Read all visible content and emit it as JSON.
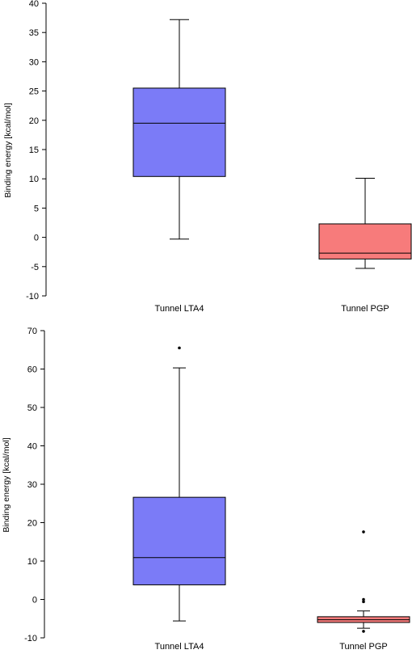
{
  "chart_data": [
    {
      "type": "box",
      "title": "",
      "xlabel": "",
      "ylabel": "Binding energy [kcal/mol]",
      "ylim": [
        -10,
        40
      ],
      "yticks": [
        "-10",
        "-5",
        "0",
        "5",
        "10",
        "15",
        "20",
        "25",
        "30",
        "35",
        "40"
      ],
      "grid": false,
      "categories": [
        "Tunnel LTA4",
        "Tunnel PGP"
      ],
      "boxes": [
        {
          "name": "Tunnel LTA4",
          "color": "#7b7bf7",
          "whisker_low": -0.3,
          "q1": 10.4,
          "median": 19.5,
          "q3": 25.5,
          "whisker_high": 37.2,
          "outliers": []
        },
        {
          "name": "Tunnel PGP",
          "color": "#f77b7b",
          "whisker_low": -5.3,
          "q1": -3.7,
          "median": -2.7,
          "q3": 2.3,
          "whisker_high": 10.1,
          "outliers": []
        }
      ]
    },
    {
      "type": "box",
      "title": "",
      "xlabel": "",
      "ylabel": "Binding energy [kcal/mol]",
      "ylim": [
        -10,
        70
      ],
      "yticks": [
        "-10",
        "0",
        "10",
        "20",
        "30",
        "40",
        "50",
        "60",
        "70"
      ],
      "grid": false,
      "categories": [
        "Tunnel LTA4",
        "Tunnel PGP"
      ],
      "boxes": [
        {
          "name": "Tunnel LTA4",
          "color": "#7b7bf7",
          "whisker_low": -5.6,
          "q1": 3.8,
          "median": 10.9,
          "q3": 26.6,
          "whisker_high": 60.3,
          "outliers": [
            65.5
          ]
        },
        {
          "name": "Tunnel PGP",
          "color": "#f77b7b",
          "whisker_low": -7.5,
          "q1": -6.0,
          "median": -5.3,
          "q3": -4.5,
          "whisker_high": -3.0,
          "outliers": [
            17.6,
            0.0,
            -0.6,
            -8.3
          ]
        }
      ]
    }
  ]
}
